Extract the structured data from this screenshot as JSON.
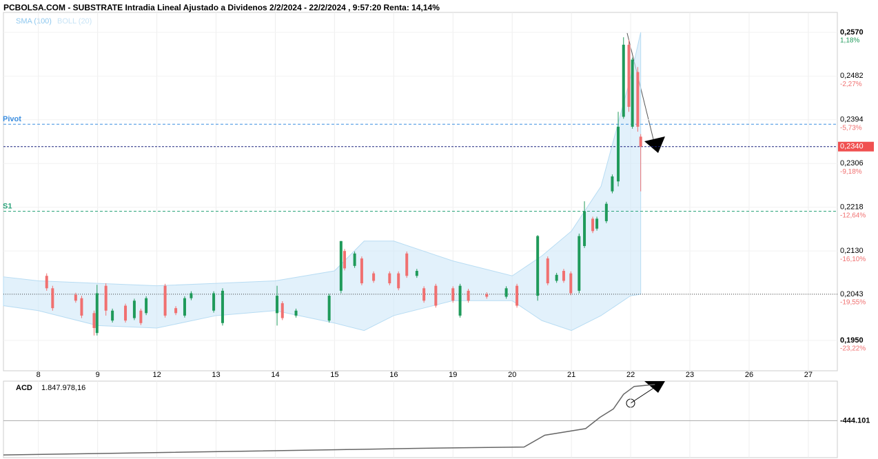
{
  "chart_data": {
    "type": "candlestick",
    "title": "PCBOLSA.COM - SUBSTRATE Intradia Lineal Ajustado a Dividenos 2/2/2024 - 22/2/2024 , 9:57:20 Renta: 14,14%",
    "legend": [
      "SMA (100)",
      "BOLL (20)"
    ],
    "up_color": "#1f9a5a",
    "down_color": "#f07070",
    "xlim": [
      -0.59,
      13.49
    ],
    "xticks": [
      {
        "value": 0,
        "label": "8"
      },
      {
        "value": 1,
        "label": "9"
      },
      {
        "value": 2,
        "label": "12"
      },
      {
        "value": 3,
        "label": "13"
      },
      {
        "value": 4,
        "label": "14"
      },
      {
        "value": 5,
        "label": "15"
      },
      {
        "value": 6,
        "label": "16"
      },
      {
        "value": 7,
        "label": "19"
      },
      {
        "value": 8,
        "label": "20"
      },
      {
        "value": 9,
        "label": "21"
      },
      {
        "value": 10,
        "label": "22"
      },
      {
        "value": 11,
        "label": "23"
      },
      {
        "value": 12,
        "label": "26"
      },
      {
        "value": 13,
        "label": "27"
      }
    ],
    "ylim": [
      0.1889,
      0.261
    ],
    "yticks": [
      {
        "value": 0.257,
        "label": "0,2570"
      },
      {
        "value": 0.2482,
        "label": "0,2482"
      },
      {
        "value": 0.2394,
        "label": "0,2394"
      },
      {
        "value": 0.2306,
        "label": "0,2306"
      },
      {
        "value": 0.2218,
        "label": "0,2218"
      },
      {
        "value": 0.213,
        "label": "0,2130"
      },
      {
        "value": 0.2043,
        "label": "0,2043"
      },
      {
        "value": 0.195,
        "label": "0,1950"
      }
    ],
    "ytick_pct": [
      "1,18%",
      "-2,27%",
      "-5,73%",
      "-9,18%",
      "-12,64%",
      "-16,10%",
      "-19,55%",
      "-23,22%"
    ],
    "ytick_pct_up": [
      true,
      false,
      false,
      false,
      false,
      false,
      false,
      false
    ],
    "last_price": {
      "value": 0.234,
      "label": "0,2340"
    },
    "levels": [
      {
        "name": "Pivot",
        "value": 0.2385,
        "color": "#3a8de0"
      },
      {
        "name": "S1",
        "value": 0.221,
        "color": "#2aa37a"
      }
    ],
    "reference_line": 0.2043,
    "x": [
      0.14,
      0.24,
      0.63,
      0.73,
      0.94,
      0.99,
      1.14,
      1.25,
      1.47,
      1.62,
      1.73,
      1.82,
      2.14,
      2.32,
      2.47,
      2.58,
      2.96,
      3.11,
      4.03,
      4.12,
      4.35,
      4.91,
      5.11,
      5.17,
      5.34,
      5.46,
      5.66,
      5.93,
      6.08,
      6.22,
      6.39,
      6.51,
      6.71,
      7.0,
      7.12,
      7.26,
      7.57,
      7.9,
      8.08,
      8.43,
      8.6,
      8.75,
      8.87,
      8.99,
      9.13,
      9.22,
      9.36,
      9.43,
      9.59,
      9.69,
      9.79,
      9.88,
      9.97,
      10.03,
      10.12,
      10.17
    ],
    "open": [
      0.208,
      0.2055,
      0.2042,
      0.2035,
      0.2005,
      0.1965,
      0.206,
      0.199,
      0.202,
      0.1995,
      0.201,
      0.2005,
      0.206,
      0.2015,
      0.2,
      0.2035,
      0.201,
      0.1985,
      0.2005,
      0.2025,
      0.2,
      0.199,
      0.205,
      0.213,
      0.21,
      0.2115,
      0.2085,
      0.2085,
      0.2085,
      0.2125,
      0.208,
      0.2055,
      0.206,
      0.2055,
      0.2,
      0.205,
      0.2043,
      0.2038,
      0.206,
      0.204,
      0.2115,
      0.207,
      0.209,
      0.2085,
      0.205,
      0.214,
      0.2195,
      0.2175,
      0.219,
      0.225,
      0.227,
      0.24,
      0.2545,
      0.238,
      0.249,
      0.236
    ],
    "high": [
      0.2085,
      0.206,
      0.2046,
      0.204,
      0.201,
      0.2062,
      0.2065,
      0.2014,
      0.2024,
      0.2034,
      0.2014,
      0.2039,
      0.2064,
      0.2019,
      0.2039,
      0.2049,
      0.2049,
      0.2055,
      0.206,
      0.2029,
      0.2014,
      0.2044,
      0.215,
      0.2134,
      0.2129,
      0.2119,
      0.2089,
      0.2089,
      0.2089,
      0.2129,
      0.2094,
      0.2059,
      0.2064,
      0.2059,
      0.2064,
      0.2054,
      0.2047,
      0.2059,
      0.2064,
      0.2162,
      0.2119,
      0.2086,
      0.2094,
      0.2089,
      0.2165,
      0.223,
      0.2199,
      0.2199,
      0.2229,
      0.2284,
      0.241,
      0.256,
      0.2555,
      0.2519,
      0.25,
      0.2365
    ],
    "low": [
      0.205,
      0.201,
      0.2026,
      0.1995,
      0.196,
      0.196,
      0.2,
      0.1986,
      0.1986,
      0.1991,
      0.1981,
      0.2001,
      0.1996,
      0.2001,
      0.1996,
      0.2031,
      0.2006,
      0.198,
      0.198,
      0.1991,
      0.1996,
      0.1986,
      0.2045,
      0.2091,
      0.2096,
      0.2061,
      0.2066,
      0.2061,
      0.2051,
      0.2076,
      0.2076,
      0.2026,
      0.2016,
      0.2026,
      0.1996,
      0.2026,
      0.2034,
      0.2034,
      0.2016,
      0.203,
      0.2061,
      0.2066,
      0.2066,
      0.2041,
      0.2045,
      0.2136,
      0.2166,
      0.2171,
      0.2186,
      0.2246,
      0.226,
      0.2396,
      0.241,
      0.2376,
      0.237,
      0.225
    ],
    "close": [
      0.2055,
      0.2015,
      0.203,
      0.2,
      0.1975,
      0.2045,
      0.201,
      0.201,
      0.199,
      0.203,
      0.1985,
      0.2035,
      0.2,
      0.2005,
      0.2035,
      0.2045,
      0.2045,
      0.205,
      0.204,
      0.1995,
      0.201,
      0.204,
      0.215,
      0.2095,
      0.2125,
      0.2065,
      0.207,
      0.2065,
      0.2055,
      0.208,
      0.209,
      0.203,
      0.202,
      0.203,
      0.206,
      0.203,
      0.2038,
      0.2055,
      0.202,
      0.216,
      0.2065,
      0.2082,
      0.207,
      0.2045,
      0.216,
      0.221,
      0.217,
      0.2195,
      0.2225,
      0.228,
      0.238,
      0.2545,
      0.242,
      0.2515,
      0.238,
      0.234
    ],
    "boll": {
      "name": "BOLL (20)",
      "color": "#cfe8f8",
      "x": [
        -0.59,
        0,
        1,
        2,
        3,
        4,
        5,
        5.5,
        6,
        7,
        8,
        8.5,
        9,
        9.5,
        10,
        10.17
      ],
      "upper": [
        0.2078,
        0.207,
        0.2065,
        0.206,
        0.2065,
        0.207,
        0.209,
        0.215,
        0.215,
        0.211,
        0.208,
        0.212,
        0.217,
        0.226,
        0.248,
        0.257
      ],
      "lower": [
        0.202,
        0.201,
        0.198,
        0.1975,
        0.2,
        0.201,
        0.1985,
        0.197,
        0.2,
        0.203,
        0.203,
        0.199,
        0.197,
        0.2,
        0.204,
        0.2043
      ]
    },
    "acd": {
      "label": "ACD",
      "value_label": "1.847.978,16",
      "ylim": [
        -2780000,
        2060000
      ],
      "yticks": [
        {
          "value": -444101,
          "label": "-444.101"
        }
      ],
      "x": [
        -0.59,
        0.86,
        5.05,
        6.33,
        8.2,
        8.55,
        9.24,
        9.48,
        9.71,
        9.88,
        10.06,
        10.41
      ],
      "values": [
        -2612000,
        -2529000,
        -2279000,
        -2196000,
        -2112000,
        -1362000,
        -944000,
        -236000,
        306000,
        1224000,
        1724000,
        1847978
      ]
    }
  }
}
